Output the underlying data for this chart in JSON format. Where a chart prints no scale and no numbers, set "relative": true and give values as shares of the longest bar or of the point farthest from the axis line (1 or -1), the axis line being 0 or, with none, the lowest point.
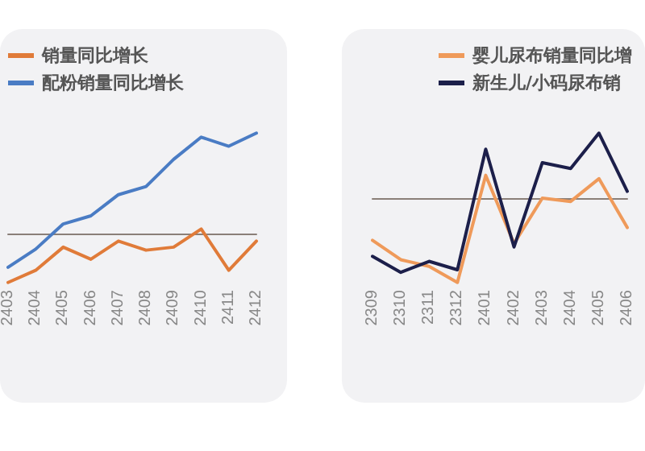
{
  "chart_data": [
    {
      "type": "line",
      "relative": true,
      "legend": "top left",
      "marker": "none",
      "categories": [
        "2403",
        "2404",
        "2405",
        "2406",
        "2407",
        "2408",
        "2409",
        "2410",
        "2411",
        "2412"
      ],
      "series": [
        {
          "name": "销量同比增长",
          "color": "#e07b39",
          "values": [
            -0.48,
            -0.36,
            -0.13,
            -0.25,
            -0.07,
            -0.16,
            -0.13,
            0.05,
            -0.36,
            -0.07
          ]
        },
        {
          "name": "配粉销量同比增长",
          "color": "#4a7cc4",
          "values": [
            -0.33,
            -0.15,
            0.1,
            0.18,
            0.39,
            0.47,
            0.74,
            0.96,
            0.87,
            1
          ]
        }
      ]
    },
    {
      "type": "line",
      "relative": true,
      "legend": "top right",
      "marker": "none",
      "categories": [
        "2309",
        "2310",
        "2311",
        "2312",
        "2401",
        "2402",
        "2403",
        "2404",
        "2405",
        "2406"
      ],
      "series": [
        {
          "name": "婴儿尿布销量同比增",
          "color": "#ef9a5a",
          "values": [
            -0.5,
            -0.73,
            -0.81,
            -1,
            0.27,
            -0.54,
            0,
            -0.04,
            0.23,
            -0.35
          ]
        },
        {
          "name": "新生儿/小码尿布销",
          "color": "#1c1f4a",
          "values": [
            -0.69,
            -0.88,
            -0.75,
            -0.85,
            0.58,
            -0.58,
            0.42,
            0.35,
            0.77,
            0.08
          ]
        }
      ]
    }
  ]
}
